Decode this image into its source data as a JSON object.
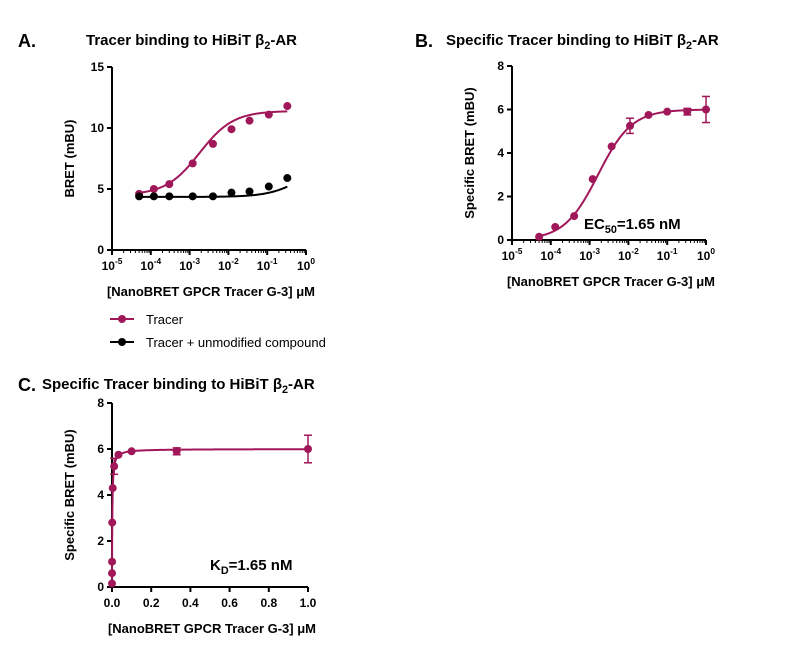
{
  "colors": {
    "tracer": "#a0175a",
    "control": "#000000",
    "axis": "#000000"
  },
  "legend": {
    "position": "below-panel-A",
    "entries": [
      {
        "label": "Tracer",
        "color": "#a0175a"
      },
      {
        "label": "Tracer + unmodified compound",
        "color": "#000000"
      }
    ]
  },
  "chart_data": [
    {
      "id": "A",
      "letter": "A.",
      "type": "scatter",
      "title": "Tracer binding to HiBiT β",
      "title_sub": "2",
      "title_tail": "-AR",
      "xlabel": "[NanoBRET GPCR Tracer G-3] μM",
      "ylabel": "BRET (mBU)",
      "xscale": "log",
      "xlim": [
        1e-05,
        1
      ],
      "ylim": [
        0,
        15
      ],
      "xticks": [
        1e-05,
        0.0001,
        0.001,
        0.01,
        0.1,
        1
      ],
      "xtick_labels": [
        {
          "base": "10",
          "exp": "-5"
        },
        {
          "base": "10",
          "exp": "-4"
        },
        {
          "base": "10",
          "exp": "-3"
        },
        {
          "base": "10",
          "exp": "-2"
        },
        {
          "base": "10",
          "exp": "-1"
        },
        {
          "base": "10",
          "exp": "0"
        }
      ],
      "yticks": [
        0,
        5,
        10,
        15
      ],
      "grid": false,
      "series": [
        {
          "name": "Tracer",
          "color": "#a0175a",
          "x": [
            5e-05,
            0.00012,
            0.0003,
            0.0012,
            0.004,
            0.012,
            0.035,
            0.11,
            0.33
          ],
          "y": [
            4.6,
            5.0,
            5.4,
            7.1,
            8.7,
            9.9,
            10.6,
            11.1,
            11.8
          ],
          "fit": {
            "bottom": 4.5,
            "top": 11.4,
            "ec50": 0.0018
          }
        },
        {
          "name": "Tracer + unmodified compound",
          "color": "#000000",
          "x": [
            5e-05,
            0.00012,
            0.0003,
            0.0012,
            0.004,
            0.012,
            0.035,
            0.11,
            0.33
          ],
          "y": [
            4.4,
            4.4,
            4.4,
            4.4,
            4.4,
            4.7,
            4.8,
            5.2,
            5.9
          ],
          "fit": {
            "bottom": 4.35,
            "top": 7.5,
            "ec50": 0.9
          }
        }
      ]
    },
    {
      "id": "B",
      "letter": "B.",
      "type": "scatter",
      "title": "Specific Tracer binding to HiBiT β",
      "title_sub": "2",
      "title_tail": "-AR",
      "xlabel": "[NanoBRET GPCR Tracer G-3] μM",
      "ylabel": "Specific BRET (mBU)",
      "xscale": "log",
      "xlim": [
        1e-05,
        1
      ],
      "ylim": [
        0,
        8
      ],
      "xticks": [
        1e-05,
        0.0001,
        0.001,
        0.01,
        0.1,
        1
      ],
      "xtick_labels": [
        {
          "base": "10",
          "exp": "-5"
        },
        {
          "base": "10",
          "exp": "-4"
        },
        {
          "base": "10",
          "exp": "-3"
        },
        {
          "base": "10",
          "exp": "-2"
        },
        {
          "base": "10",
          "exp": "-1"
        },
        {
          "base": "10",
          "exp": "0"
        }
      ],
      "yticks": [
        0,
        2,
        4,
        6,
        8
      ],
      "grid": false,
      "annotation": {
        "main": "EC",
        "sub": "50",
        "tail": "=1.65 nM"
      },
      "series": [
        {
          "name": "Tracer",
          "color": "#a0175a",
          "x": [
            5e-05,
            0.00013,
            0.0004,
            0.0012,
            0.0037,
            0.011,
            0.033,
            0.1,
            0.33,
            1.0
          ],
          "y": [
            0.15,
            0.6,
            1.1,
            2.8,
            4.3,
            5.25,
            5.75,
            5.9,
            5.9,
            6.0
          ],
          "err": [
            0,
            0,
            0,
            0,
            0,
            0.35,
            0,
            0,
            0.15,
            0.6
          ],
          "fit": {
            "bottom": 0.0,
            "top": 6.0,
            "ec50": 0.00165
          },
          "baseline": 0
        }
      ]
    },
    {
      "id": "C",
      "letter": "C.",
      "type": "scatter",
      "title": "Specific Tracer binding to HiBiT β",
      "title_sub": "2",
      "title_tail": "-AR",
      "xlabel": "[NanoBRET GPCR Tracer G-3] μM",
      "ylabel": "Specific BRET (mBU)",
      "xscale": "linear",
      "xlim": [
        0,
        1
      ],
      "ylim": [
        0,
        8
      ],
      "xticks": [
        0,
        0.2,
        0.4,
        0.6,
        0.8,
        1.0
      ],
      "xtick_labels": [
        "0.0",
        "0.2",
        "0.4",
        "0.6",
        "0.8",
        "1.0"
      ],
      "yticks": [
        0,
        2,
        4,
        6,
        8
      ],
      "grid": false,
      "annotation": {
        "main": "K",
        "sub": "D",
        "tail": "=1.65 nM"
      },
      "series": [
        {
          "name": "Tracer",
          "color": "#a0175a",
          "x": [
            5e-05,
            0.00013,
            0.0004,
            0.0012,
            0.0037,
            0.011,
            0.033,
            0.1,
            0.33,
            1.0
          ],
          "y": [
            0.15,
            0.6,
            1.1,
            2.8,
            4.3,
            5.25,
            5.75,
            5.9,
            5.9,
            6.0
          ],
          "err": [
            0,
            0,
            0,
            0,
            0,
            0.35,
            0,
            0,
            0.15,
            0.6
          ],
          "fit": {
            "bmax": 6.0,
            "kd": 0.00165
          }
        }
      ]
    }
  ]
}
